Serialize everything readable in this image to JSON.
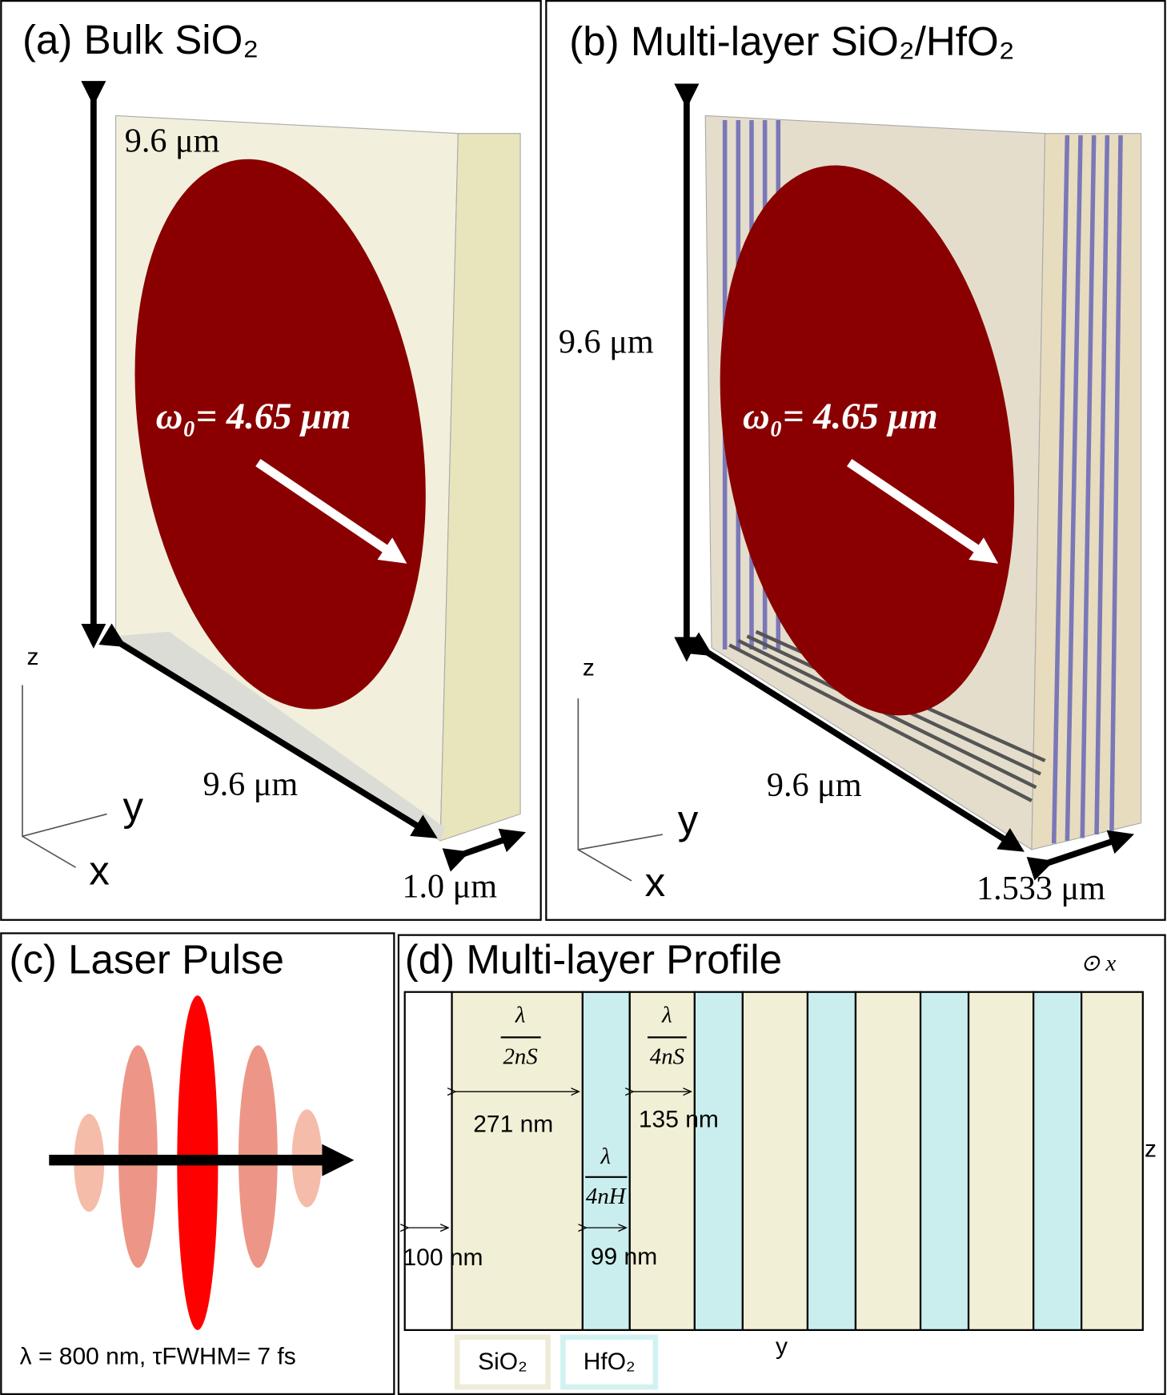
{
  "panel_a": {
    "title": "(a) Bulk SiO₂",
    "height_label": "9.6 μm",
    "waist_label": "ω₀= 4.65 μm",
    "width_label": "9.6 μm",
    "thickness_label": "1.0 μm",
    "axes": {
      "z": "z",
      "y": "y",
      "x": "x"
    }
  },
  "panel_b": {
    "title": "(b) Multi-layer SiO₂/HfO₂",
    "height_label": "9.6 μm",
    "waist_label": "ω₀= 4.65 μm",
    "width_label": "9.6 μm",
    "thickness_label": "1.533 μm",
    "axes": {
      "z": "z",
      "y": "y",
      "x": "x"
    }
  },
  "panel_c": {
    "title": "(c) Laser Pulse",
    "caption": "λ = 800 nm, τFWHM= 7 fs"
  },
  "panel_d": {
    "title": "(d) Multi-layer Profile",
    "direction": "⊙ x",
    "fractions": [
      {
        "numerator": "λ",
        "denominator": "2nS"
      },
      {
        "numerator": "λ",
        "denominator": "4nS"
      },
      {
        "numerator": "λ",
        "denominator": "4nH"
      }
    ],
    "dimensions": [
      "271 nm",
      "135 nm",
      "99 nm",
      "100 nm"
    ],
    "axes": {
      "z": "z",
      "y": "y"
    },
    "legend": [
      "SiO₂",
      "HfO₂"
    ]
  }
}
